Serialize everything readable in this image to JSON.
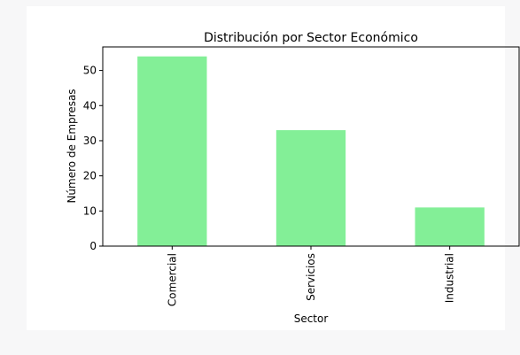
{
  "chart_data": {
    "type": "bar",
    "title": "Distribución por Sector Económico",
    "xlabel": "Sector",
    "ylabel": "Número de Empresas",
    "categories": [
      "Comercial",
      "Servicios",
      "Industrial"
    ],
    "values": [
      54,
      33,
      11
    ],
    "ylim": [
      0,
      56.7
    ],
    "yticks": [
      "0",
      "10",
      "20",
      "30",
      "40",
      "50"
    ],
    "bar_color": "#83ef97",
    "grid": false,
    "legend": "none"
  }
}
